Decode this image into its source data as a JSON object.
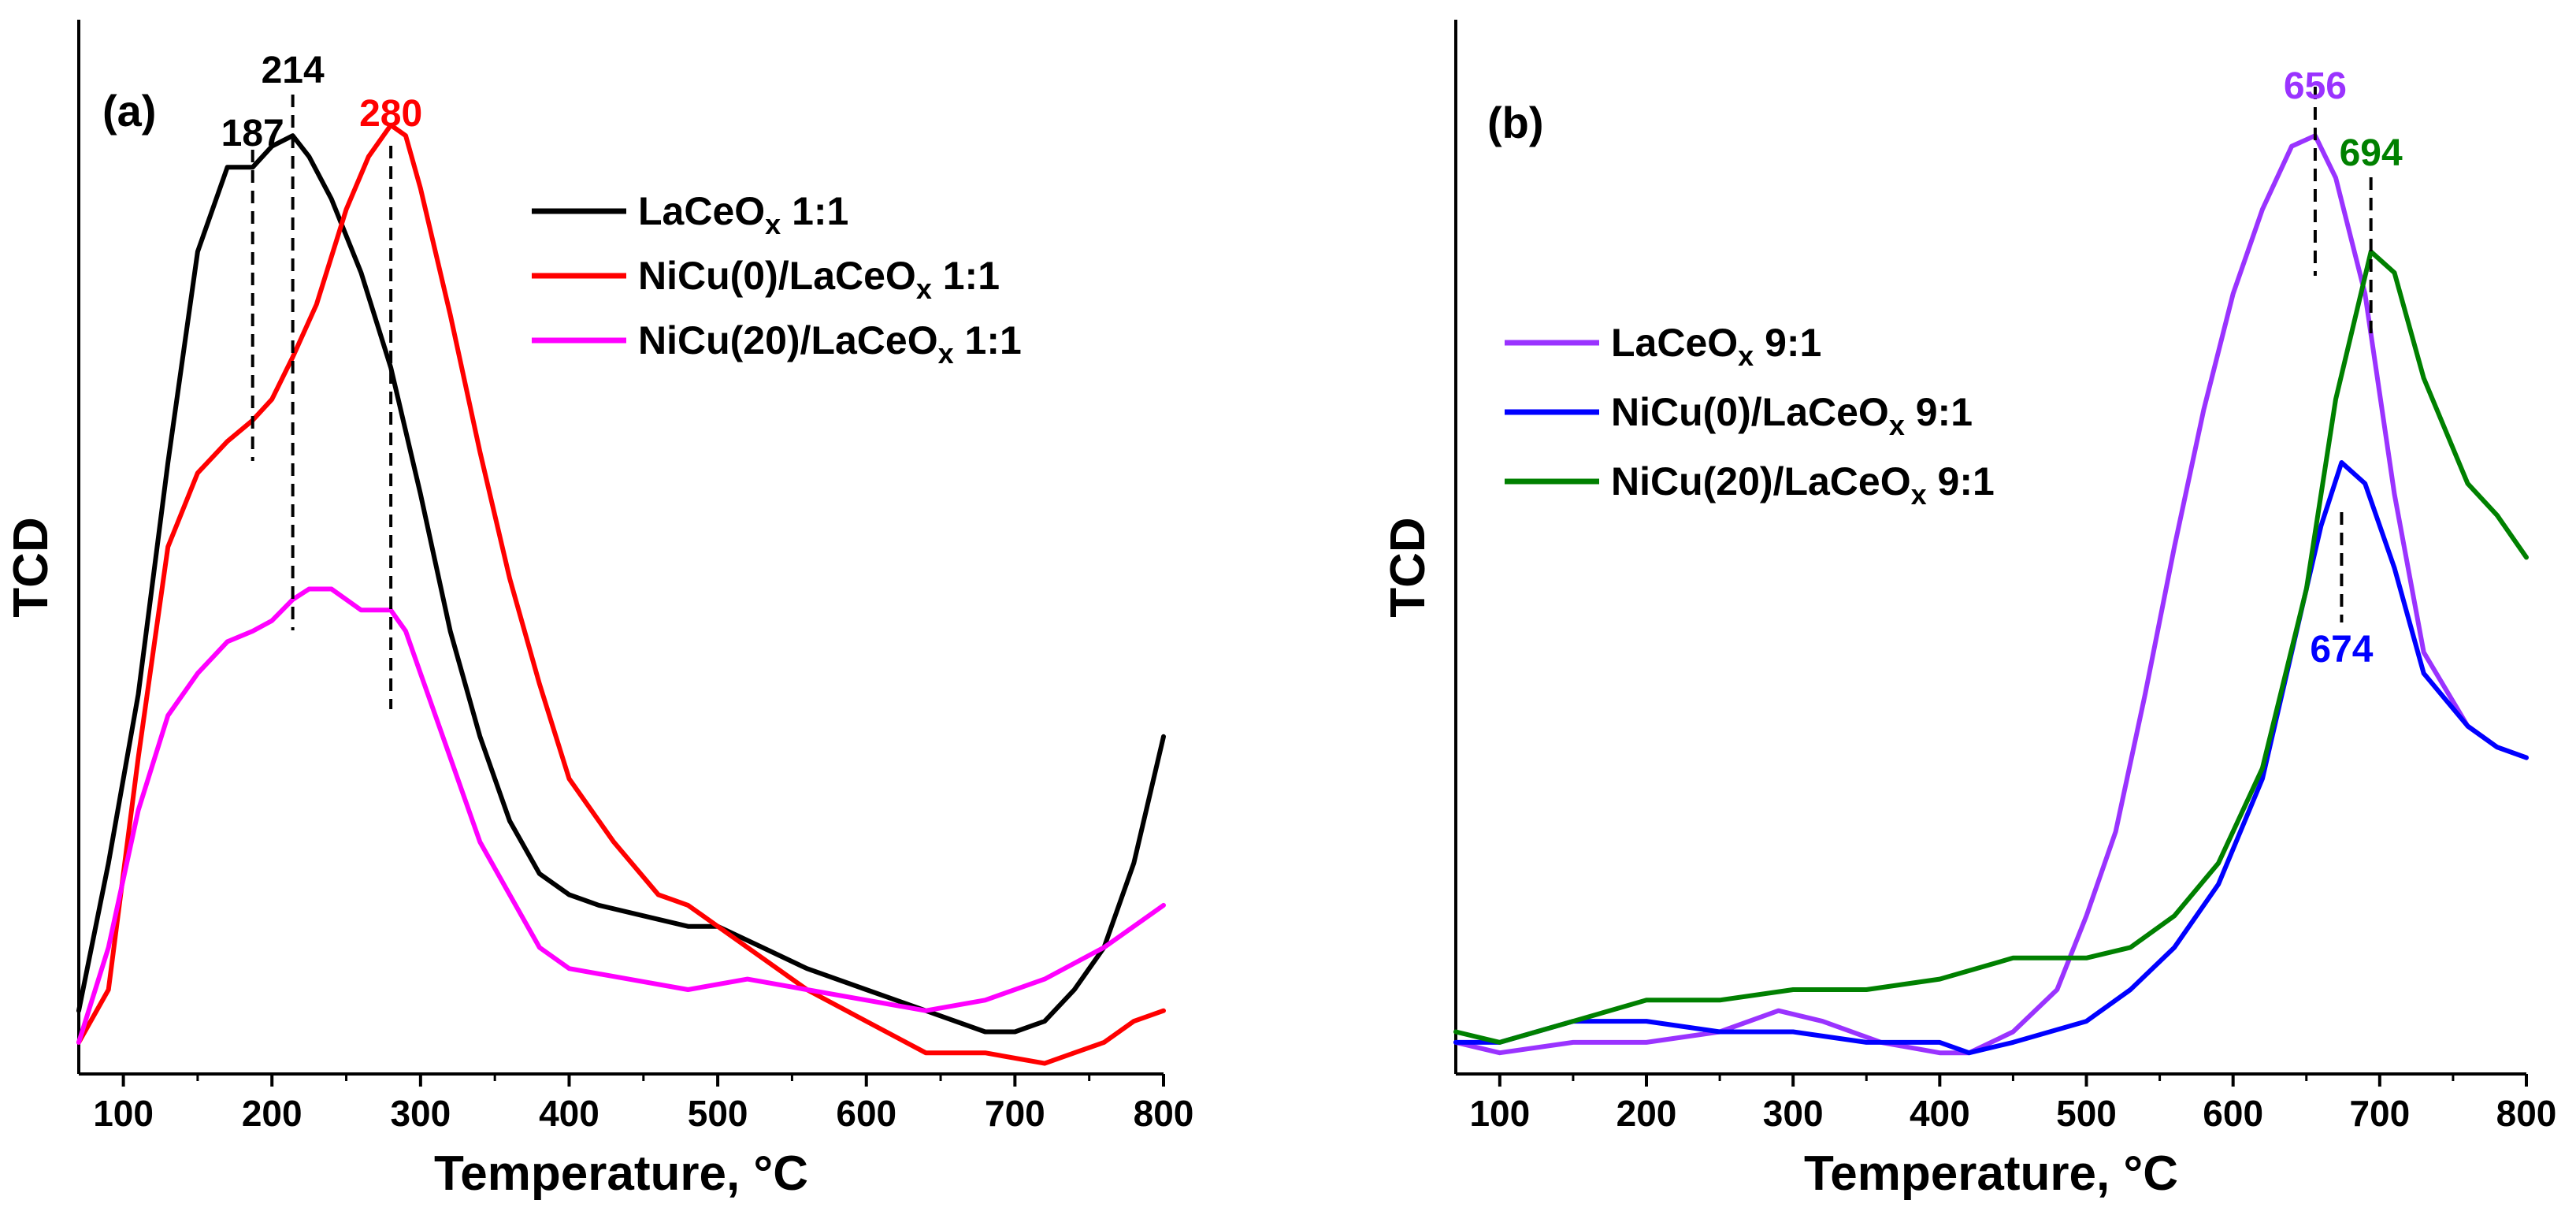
{
  "chart_data": [
    {
      "type": "line",
      "panel_label": "(a)",
      "xlabel": "Temperature, °C",
      "ylabel": "TCD",
      "xlim": [
        70,
        800
      ],
      "ylim": [
        0,
        100
      ],
      "xticks": [
        100,
        200,
        300,
        400,
        500,
        600,
        700,
        800
      ],
      "legend_position": "top-right",
      "series": [
        {
          "name": "LaCeOx 1:1",
          "legend_main": "LaCeO",
          "legend_sub": "x",
          "legend_tail": " 1:1",
          "color": "#000000",
          "x": [
            70,
            90,
            110,
            130,
            150,
            170,
            187,
            200,
            214,
            225,
            240,
            260,
            280,
            300,
            320,
            340,
            360,
            380,
            400,
            420,
            450,
            480,
            500,
            530,
            560,
            600,
            640,
            680,
            700,
            720,
            740,
            760,
            780,
            800
          ],
          "y": [
            6,
            20,
            36,
            58,
            78,
            86,
            86,
            88,
            89,
            87,
            83,
            76,
            67,
            55,
            42,
            32,
            24,
            19,
            17,
            16,
            15,
            14,
            14,
            12,
            10,
            8,
            6,
            4,
            4,
            5,
            8,
            12,
            20,
            32
          ]
        },
        {
          "name": "NiCu(0)/LaCeOx 1:1",
          "legend_main": "NiCu(0)/LaCeO",
          "legend_sub": "x",
          "legend_tail": " 1:1",
          "color": "#ff0000",
          "x": [
            70,
            90,
            110,
            130,
            150,
            170,
            187,
            200,
            214,
            230,
            250,
            265,
            280,
            290,
            300,
            320,
            340,
            360,
            380,
            400,
            430,
            460,
            480,
            500,
            530,
            560,
            600,
            640,
            680,
            720,
            740,
            760,
            780,
            800
          ],
          "y": [
            3,
            8,
            30,
            50,
            57,
            60,
            62,
            64,
            68,
            73,
            82,
            87,
            90,
            89,
            84,
            72,
            59,
            47,
            37,
            28,
            22,
            17,
            16,
            14,
            11,
            8,
            5,
            2,
            2,
            1,
            2,
            3,
            5,
            6
          ]
        },
        {
          "name": "NiCu(20)/LaCeOx 1:1",
          "legend_main": "NiCu(20)/LaCeO",
          "legend_sub": "x",
          "legend_tail": " 1:1",
          "color": "#ff00ff",
          "x": [
            70,
            90,
            110,
            130,
            150,
            170,
            187,
            200,
            214,
            225,
            240,
            260,
            280,
            290,
            300,
            320,
            340,
            360,
            380,
            400,
            440,
            480,
            520,
            560,
            600,
            640,
            680,
            720,
            760,
            800
          ],
          "y": [
            3,
            12,
            25,
            34,
            38,
            41,
            42,
            43,
            45,
            46,
            46,
            44,
            44,
            42,
            38,
            30,
            22,
            17,
            12,
            10,
            9,
            8,
            9,
            8,
            7,
            6,
            7,
            9,
            12,
            16
          ]
        }
      ],
      "annotations": [
        {
          "text": "187",
          "x": 187,
          "color": "#000000"
        },
        {
          "text": "214",
          "x": 214,
          "color": "#000000"
        },
        {
          "text": "280",
          "x": 280,
          "color": "#ff0000"
        }
      ]
    },
    {
      "type": "line",
      "panel_label": "(b)",
      "xlabel": "Temperature, °C",
      "ylabel": "TCD",
      "xlim": [
        70,
        800
      ],
      "ylim": [
        0,
        100
      ],
      "xticks": [
        100,
        200,
        300,
        400,
        500,
        600,
        700,
        800
      ],
      "legend_position": "top-left",
      "series": [
        {
          "name": "LaCeOx 9:1",
          "legend_main": "LaCeO",
          "legend_sub": "x",
          "legend_tail": " 9:1",
          "color": "#9a33ff",
          "x": [
            70,
            100,
            150,
            200,
            250,
            290,
            320,
            360,
            400,
            420,
            450,
            480,
            500,
            520,
            540,
            560,
            580,
            600,
            620,
            640,
            656,
            670,
            690,
            710,
            730,
            760,
            780,
            800
          ],
          "y": [
            3,
            2,
            3,
            3,
            4,
            6,
            5,
            3,
            2,
            2,
            4,
            8,
            15,
            23,
            36,
            50,
            63,
            74,
            82,
            88,
            89,
            85,
            74,
            55,
            40,
            33,
            31,
            30
          ]
        },
        {
          "name": "NiCu(0)/LaCeOx 9:1",
          "legend_main": "NiCu(0)/LaCeO",
          "legend_sub": "x",
          "legend_tail": " 9:1",
          "color": "#0000ff",
          "x": [
            70,
            100,
            150,
            200,
            250,
            300,
            350,
            400,
            420,
            450,
            500,
            530,
            560,
            590,
            620,
            640,
            660,
            674,
            690,
            710,
            730,
            760,
            780,
            800
          ],
          "y": [
            3,
            3,
            5,
            5,
            4,
            4,
            3,
            3,
            2,
            3,
            5,
            8,
            12,
            18,
            28,
            40,
            52,
            58,
            56,
            48,
            38,
            33,
            31,
            30
          ]
        },
        {
          "name": "NiCu(20)/LaCeOx 9:1",
          "legend_main": "NiCu(20)/LaCeO",
          "legend_sub": "x",
          "legend_tail": " 9:1",
          "color": "#008000",
          "x": [
            70,
            100,
            150,
            200,
            250,
            300,
            350,
            400,
            450,
            480,
            500,
            530,
            560,
            590,
            620,
            650,
            670,
            694,
            710,
            730,
            760,
            780,
            800
          ],
          "y": [
            4,
            3,
            5,
            7,
            7,
            8,
            8,
            9,
            11,
            11,
            11,
            12,
            15,
            20,
            29,
            46,
            64,
            78,
            76,
            66,
            56,
            53,
            49
          ]
        }
      ],
      "annotations": [
        {
          "text": "656",
          "x": 656,
          "color": "#9a33ff"
        },
        {
          "text": "694",
          "x": 694,
          "color": "#008000"
        },
        {
          "text": "674",
          "x": 674,
          "color": "#0000ff"
        }
      ]
    }
  ]
}
